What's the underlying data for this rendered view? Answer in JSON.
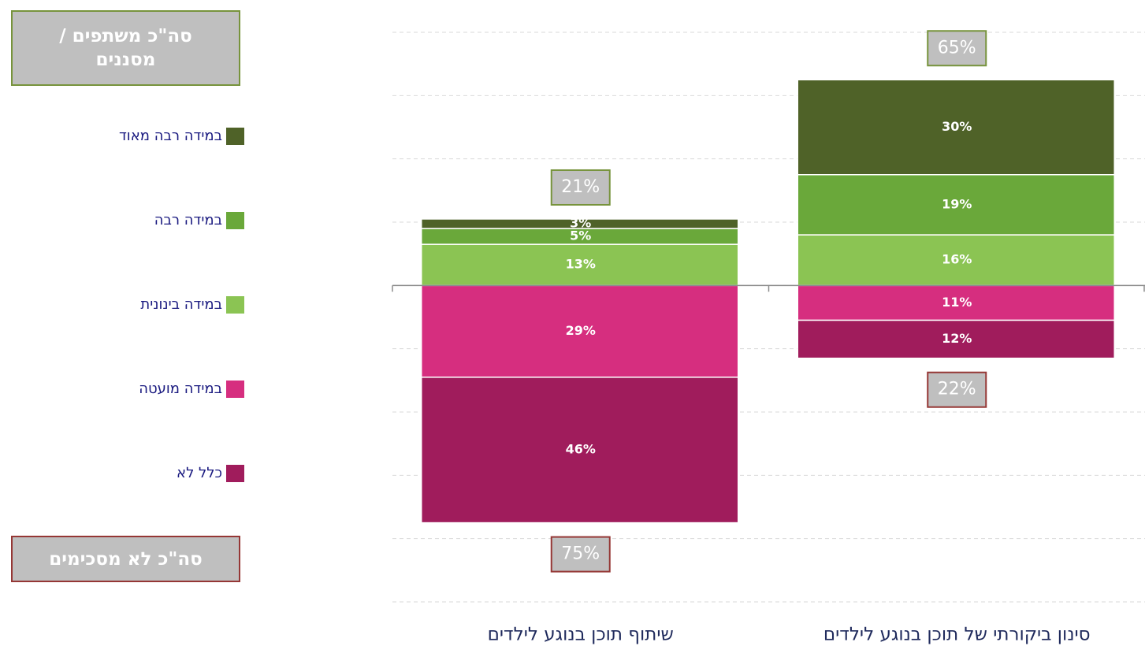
{
  "chart_data": {
    "type": "diverging_stacked_bar",
    "categories": [
      "שיתוף תוכן בנוגע לילדים",
      "סינון ביקורתי של תוכן בנוגע לילדים"
    ],
    "series": [
      {
        "name": "במידה רבה מאוד",
        "color": "#4f6228",
        "values": [
          3,
          30
        ],
        "value_labels": [
          "3%",
          "30%"
        ]
      },
      {
        "name": "במידה רבה",
        "color": "#6aa83a",
        "values": [
          5,
          19
        ],
        "value_labels": [
          "5%",
          "19%"
        ]
      },
      {
        "name": "במידה בינונית",
        "color": "#8bc453",
        "values": [
          13,
          16
        ],
        "value_labels": [
          "13%",
          "16%"
        ]
      },
      {
        "name": "במידה מועטה",
        "color": "#d62e7f",
        "values": [
          -29,
          -11
        ],
        "value_labels": [
          "29%",
          "11%"
        ]
      },
      {
        "name": "כלל לא",
        "color": "#a01c5c",
        "values": [
          -46,
          -12
        ],
        "value_labels": [
          "46%",
          "12%"
        ]
      }
    ],
    "totals": {
      "positive": {
        "label": "סה\"כ משתפים / מסננים",
        "border": "#77933c",
        "values": [
          21,
          65
        ],
        "value_labels": [
          "21%",
          "65%"
        ]
      },
      "negative": {
        "label": "סה\"כ לא מסכימים",
        "border": "#953735",
        "values": [
          75,
          22
        ],
        "value_labels": [
          "75%",
          "22%"
        ]
      }
    },
    "ylim": [
      -100,
      80
    ],
    "yticks": [
      -100,
      -80,
      -60,
      -40,
      -20,
      0,
      20,
      40,
      60,
      80
    ],
    "grid": true
  }
}
